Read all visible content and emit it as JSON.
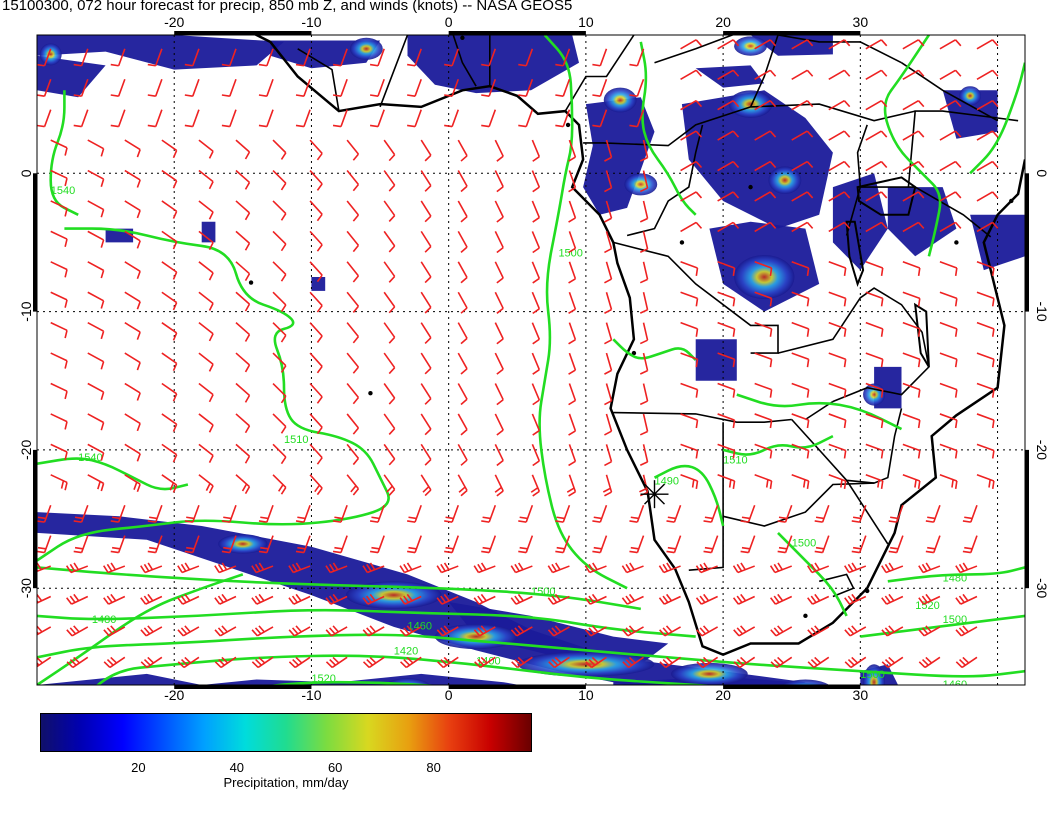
{
  "title": "15100300, 072 hour forecast for precip, 850 mb Z, and winds (knots) -- NASA GEOS5",
  "map": {
    "lon_range": [
      -30,
      42
    ],
    "lat_range": [
      -37,
      10
    ],
    "lon_ticks": [
      "-20",
      "-10",
      "0",
      "10",
      "20",
      "30"
    ],
    "lat_ticks": [
      "0",
      "-10",
      "-20",
      "-30"
    ],
    "contour_color": "#22dd22",
    "wind_barb_color": "#ee2222",
    "precip_shading_colors": [
      "#1a1aa0",
      "#2a55d8",
      "#2aa8e8",
      "#34d0b0",
      "#d8d82a",
      "#d82a1a"
    ],
    "contour_labels": [
      "1540",
      "1510",
      "1540",
      "1500",
      "1500",
      "1480",
      "1460",
      "1420",
      "1400",
      "1520",
      "1500",
      "1480",
      "1460",
      "1440",
      "1510",
      "1490",
      "1500",
      "1500",
      "1520"
    ]
  },
  "colorbar": {
    "label": "Precipitation, mm/day",
    "min": 0,
    "max": 100,
    "ticks": [
      {
        "value": 20,
        "label": "20"
      },
      {
        "value": 40,
        "label": "40"
      },
      {
        "value": 60,
        "label": "60"
      },
      {
        "value": 80,
        "label": "80"
      }
    ],
    "colors": [
      "#10106a",
      "#0000b4",
      "#0000ff",
      "#0050ff",
      "#00a0ff",
      "#00dcdc",
      "#20dc90",
      "#7cdc40",
      "#d8d820",
      "#e8a010",
      "#e84010",
      "#c80000",
      "#6a0000"
    ]
  }
}
